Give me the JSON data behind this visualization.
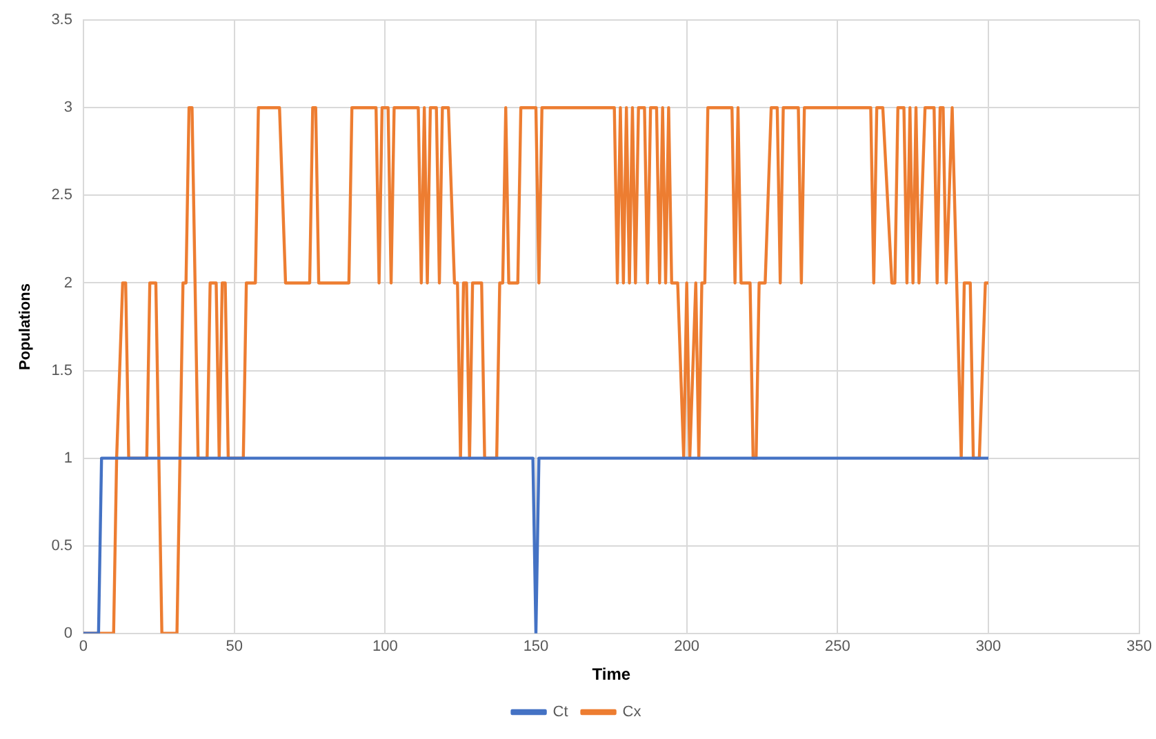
{
  "chart_data": {
    "type": "line",
    "xlabel": "Time",
    "ylabel": "Populations",
    "xlim": [
      0,
      350
    ],
    "xticks": [
      0,
      50,
      100,
      150,
      200,
      250,
      300,
      350
    ],
    "ylim": [
      0,
      3.5
    ],
    "yticks": [
      0,
      0.5,
      1,
      1.5,
      2,
      2.5,
      3,
      3.5
    ],
    "grid": true,
    "legend": "bottom",
    "marker": "none",
    "line_style": "solid",
    "series": [
      {
        "name": "Ct",
        "color": "#4472c4",
        "x": [
          0,
          5,
          6,
          149,
          150,
          151,
          300
        ],
        "values": [
          0,
          0,
          1,
          1,
          0,
          1,
          1
        ]
      },
      {
        "name": "Cx",
        "color": "#ed7d31",
        "x": [
          0,
          10,
          11,
          13,
          14,
          15,
          21,
          22,
          24,
          26,
          31,
          33,
          34,
          35,
          36,
          38,
          41,
          42,
          44,
          45,
          46,
          47,
          48,
          53,
          54,
          57,
          58,
          65,
          67,
          75,
          76,
          77,
          78,
          88,
          89,
          97,
          98,
          99,
          101,
          102,
          103,
          111,
          112,
          113,
          114,
          115,
          117,
          118,
          119,
          121,
          123,
          124,
          125,
          126,
          127,
          128,
          129,
          132,
          133,
          137,
          138,
          139,
          140,
          141,
          144,
          145,
          150,
          151,
          152,
          176,
          177,
          178,
          179,
          180,
          181,
          182,
          183,
          184,
          186,
          187,
          188,
          190,
          191,
          192,
          193,
          194,
          195,
          197,
          199,
          200,
          201,
          203,
          204,
          205,
          206,
          207,
          215,
          216,
          217,
          218,
          221,
          222,
          223,
          224,
          226,
          228,
          230,
          231,
          232,
          237,
          238,
          239,
          261,
          262,
          263,
          265,
          268,
          269,
          270,
          272,
          273,
          274,
          275,
          276,
          277,
          279,
          282,
          283,
          284,
          285,
          286,
          288,
          291,
          292,
          294,
          295,
          297,
          299,
          300
        ],
        "values": [
          0,
          0,
          1,
          2,
          2,
          1,
          1,
          2,
          2,
          0,
          0,
          2,
          2,
          3,
          3,
          1,
          1,
          2,
          2,
          1,
          2,
          2,
          1,
          1,
          2,
          2,
          3,
          3,
          2,
          2,
          3,
          3,
          2,
          2,
          3,
          3,
          2,
          3,
          3,
          2,
          3,
          3,
          2,
          3,
          2,
          3,
          3,
          2,
          3,
          3,
          2,
          2,
          1,
          2,
          2,
          1,
          2,
          2,
          1,
          1,
          2,
          2,
          3,
          2,
          2,
          3,
          3,
          2,
          3,
          3,
          2,
          3,
          2,
          3,
          2,
          3,
          2,
          3,
          3,
          2,
          3,
          3,
          2,
          3,
          2,
          3,
          2,
          2,
          1,
          2,
          1,
          2,
          1,
          2,
          2,
          3,
          3,
          2,
          3,
          2,
          2,
          1,
          1,
          2,
          2,
          3,
          3,
          2,
          3,
          3,
          2,
          3,
          3,
          2,
          3,
          3,
          2,
          2,
          3,
          3,
          2,
          3,
          2,
          3,
          2,
          3,
          3,
          2,
          3,
          3,
          2,
          3,
          1,
          2,
          2,
          1,
          1,
          2,
          2
        ]
      }
    ]
  }
}
